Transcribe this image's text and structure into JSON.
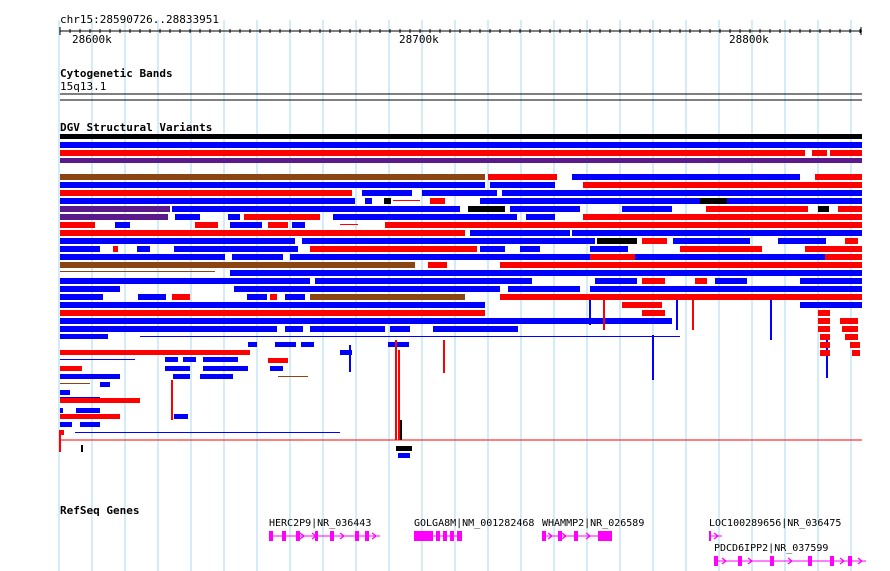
{
  "ruler": {
    "location": "chr15:28590726..28833951",
    "ticks": [
      "28600k",
      "28700k",
      "28800k"
    ]
  },
  "tracks": {
    "cytoband": {
      "title": "Cytogenetic Bands",
      "band": "15q13.1"
    },
    "dgv": {
      "title": "DGV Structural Variants"
    },
    "refseq": {
      "title": "RefSeq Genes"
    }
  },
  "genes": [
    {
      "label": "HERC2P9|NR_036443",
      "strand": "+"
    },
    {
      "label": "GOLGA8M|NM_001282468",
      "strand": "-"
    },
    {
      "label": "WHAMMP2|NR_026589",
      "strand": "+"
    },
    {
      "label": "LOC100289656|NR_036475",
      "strand": "+"
    },
    {
      "label": "PDCD6IPP2|NR_037599",
      "strand": "+"
    }
  ],
  "colors": {
    "gain": "#0000ff",
    "loss": "#ff0000",
    "inversion": "#8b4513",
    "complex": "#000000",
    "gain_loss": "#5a1a8c",
    "gene": "#ff00ff",
    "grid": "#a8d8f0"
  }
}
